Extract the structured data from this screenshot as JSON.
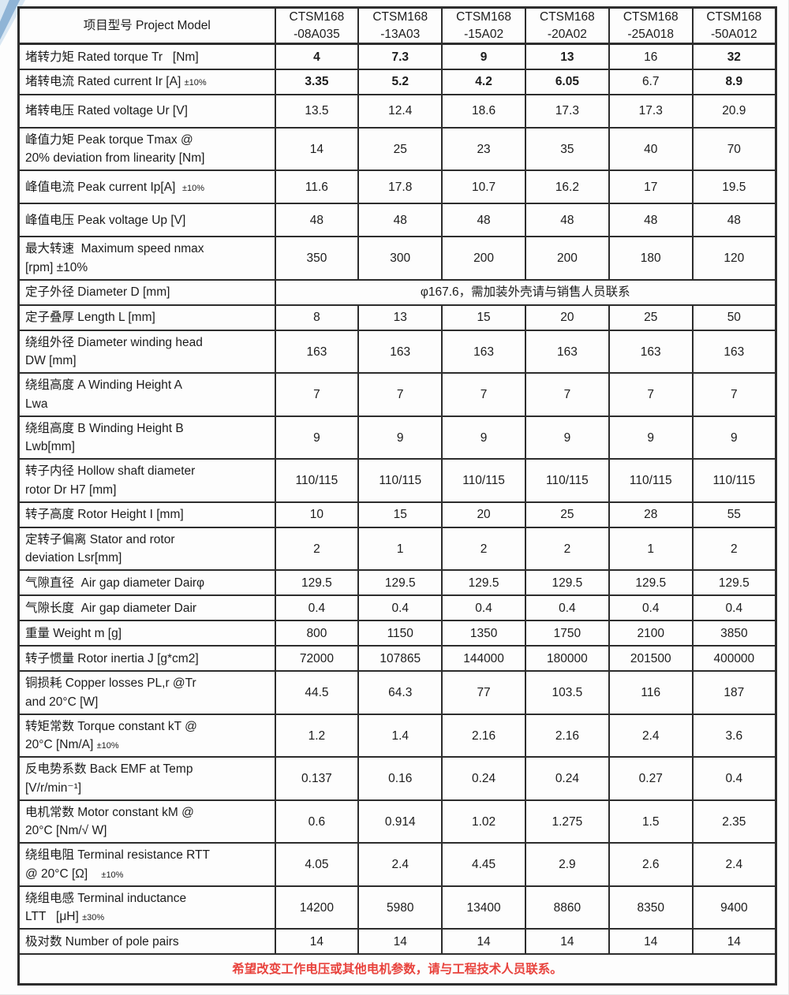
{
  "page": {
    "corner_decoration": {
      "band_color": "#8fb4d6",
      "light_color": "#d9e7f3"
    }
  },
  "table": {
    "border_color": "#2d2d2d",
    "text_color": "#1c1c1c",
    "header": {
      "label": "项目型号 Project Model",
      "models": [
        "CTSM168\n-08A035",
        "CTSM168\n-13A03",
        "CTSM168\n-15A02",
        "CTSM168\n-20A02",
        "CTSM168\n-25A018",
        "CTSM168\n-50A012"
      ]
    },
    "rows": [
      {
        "label": "堵转力矩 Rated torque Tr   [Nm]",
        "values": [
          "4",
          "7.3",
          "9",
          "13",
          "16",
          "32"
        ],
        "bold": [
          1,
          1,
          1,
          1,
          0,
          1
        ]
      },
      {
        "label": "堵转电流 Rated current Ir [A] ±10%",
        "small_pct": true,
        "values": [
          "3.35",
          "5.2",
          "4.2",
          "6.05",
          "6.7",
          "8.9"
        ],
        "bold": [
          1,
          1,
          1,
          1,
          0,
          1
        ]
      },
      {
        "label": "堵转电压 Rated voltage Ur [V]",
        "values": [
          "13.5",
          "12.4",
          "18.6",
          "17.3",
          "17.3",
          "20.9"
        ]
      },
      {
        "label": "峰值力矩 Peak torque Tmax @\n20% deviation from linearity [Nm]",
        "values": [
          "14",
          "25",
          "23",
          "35",
          "40",
          "70"
        ]
      },
      {
        "label": "峰值电流 Peak current Ip[A]  ±10%",
        "small_pct": true,
        "values": [
          "11.6",
          "17.8",
          "10.7",
          "16.2",
          "17",
          "19.5"
        ]
      },
      {
        "label": "峰值电压 Peak voltage Up [V]",
        "values": [
          "48",
          "48",
          "48",
          "48",
          "48",
          "48"
        ]
      },
      {
        "label": "最大转速  Maximum speed nmax\n[rpm] ±10%",
        "values": [
          "350",
          "300",
          "200",
          "200",
          "180",
          "120"
        ]
      },
      {
        "label": "定子外径 Diameter D [mm]",
        "merged": "φ167.6，需加装外壳请与销售人员联系"
      },
      {
        "label": "定子叠厚 Length L [mm]",
        "values": [
          "8",
          "13",
          "15",
          "20",
          "25",
          "50"
        ]
      },
      {
        "label": "绕组外径 Diameter winding head\nDW [mm]",
        "values": [
          "163",
          "163",
          "163",
          "163",
          "163",
          "163"
        ]
      },
      {
        "label": "绕组高度 A Winding Height A\nLwa",
        "values": [
          "7",
          "7",
          "7",
          "7",
          "7",
          "7"
        ]
      },
      {
        "label": "绕组高度 B Winding Height B\nLwb[mm]",
        "values": [
          "9",
          "9",
          "9",
          "9",
          "9",
          "9"
        ]
      },
      {
        "label": "转子内径 Hollow shaft diameter\nrotor Dr H7 [mm]",
        "values": [
          "110/115",
          "110/115",
          "110/115",
          "110/115",
          "110/115",
          "110/115"
        ]
      },
      {
        "label": "转子高度 Rotor Height I [mm]",
        "values": [
          "10",
          "15",
          "20",
          "25",
          "28",
          "55"
        ]
      },
      {
        "label": "定转子偏离 Stator and rotor\ndeviation Lsr[mm]",
        "values": [
          "2",
          "1",
          "2",
          "2",
          "1",
          "2"
        ]
      },
      {
        "label": "气隙直径  Air gap diameter Dairφ",
        "values": [
          "129.5",
          "129.5",
          "129.5",
          "129.5",
          "129.5",
          "129.5"
        ]
      },
      {
        "label": "气隙长度  Air gap diameter Dair",
        "values": [
          "0.4",
          "0.4",
          "0.4",
          "0.4",
          "0.4",
          "0.4"
        ]
      },
      {
        "label": "重量 Weight m [g]",
        "values": [
          "800",
          "1150",
          "1350",
          "1750",
          "2100",
          "3850"
        ]
      },
      {
        "label": "转子惯量 Rotor inertia J [g*cm2]",
        "values": [
          "72000",
          "107865",
          "144000",
          "180000",
          "201500",
          "400000"
        ]
      },
      {
        "label": "铜损耗 Copper losses PL,r @Tr\nand 20°C [W]",
        "values": [
          "44.5",
          "64.3",
          "77",
          "103.5",
          "116",
          "187"
        ]
      },
      {
        "label": "转矩常数 Torque constant kT @\n20°C [Nm/A] ±10%",
        "small_pct": true,
        "values": [
          "1.2",
          "1.4",
          "2.16",
          "2.16",
          "2.4",
          "3.6"
        ]
      },
      {
        "label": "反电势系数 Back EMF at Temp\n[V/r/min⁻¹]",
        "values": [
          "0.137",
          "0.16",
          "0.24",
          "0.24",
          "0.27",
          "0.4"
        ]
      },
      {
        "label": "电机常数 Motor constant kM @\n20°C [Nm/√ W]",
        "values": [
          "0.6",
          "0.914",
          "1.02",
          "1.275",
          "1.5",
          "2.35"
        ]
      },
      {
        "label": "绕组电阻 Terminal resistance RTT\n@ 20°C [Ω]    ±10%",
        "small_pct": true,
        "values": [
          "4.05",
          "2.4",
          "4.45",
          "2.9",
          "2.6",
          "2.4"
        ]
      },
      {
        "label": "绕组电感 Terminal inductance\nLTT   [μH] ±30%",
        "small_pct": true,
        "values": [
          "14200",
          "5980",
          "13400",
          "8860",
          "8350",
          "9400"
        ]
      },
      {
        "label": "极对数 Number of pole pairs",
        "values": [
          "14",
          "14",
          "14",
          "14",
          "14",
          "14"
        ]
      }
    ],
    "footer": {
      "text": "希望改变工作电压或其他电机参数，请与工程技术人员联系。",
      "color": "#e8423c"
    }
  }
}
